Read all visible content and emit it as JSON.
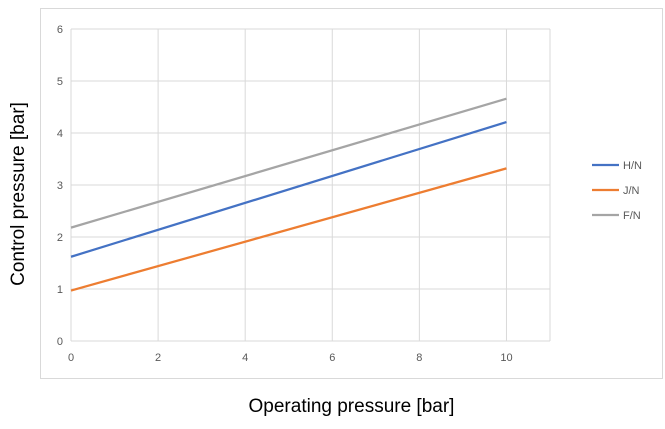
{
  "chart_data": {
    "type": "line",
    "xlabel": "Operating pressure [bar]",
    "ylabel": "Control pressure [bar]",
    "xlim": [
      0,
      11
    ],
    "ylim": [
      0,
      6
    ],
    "xticks": [
      0,
      2,
      4,
      6,
      8,
      10
    ],
    "yticks": [
      0,
      1,
      2,
      3,
      4,
      5,
      6
    ],
    "grid": true,
    "legend_position": "right",
    "series": [
      {
        "name": "H/N",
        "color": "#4472c4",
        "x": [
          0,
          10
        ],
        "y": [
          1.62,
          4.21
        ]
      },
      {
        "name": "J/N",
        "color": "#ed7d31",
        "x": [
          0,
          10
        ],
        "y": [
          0.97,
          3.32
        ]
      },
      {
        "name": "F/N",
        "color": "#a5a5a5",
        "x": [
          0,
          10
        ],
        "y": [
          2.18,
          4.66
        ]
      }
    ]
  }
}
